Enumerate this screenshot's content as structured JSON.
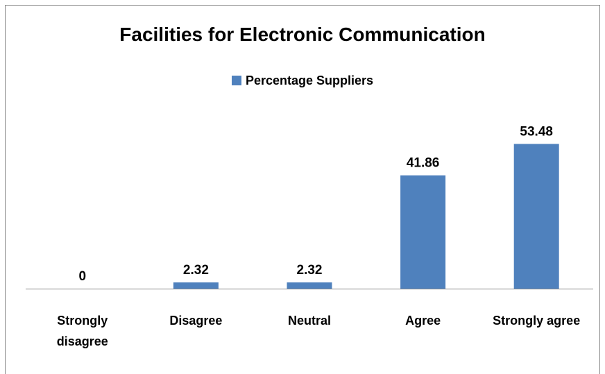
{
  "chart_data": {
    "type": "bar",
    "title": "Facilities for Electronic Communication",
    "categories": [
      "Strongly disagree",
      "Disagree",
      "Neutral",
      "Agree",
      "Strongly agree"
    ],
    "category_lines": [
      [
        "Strongly",
        "disagree"
      ],
      [
        "Disagree"
      ],
      [
        "Neutral"
      ],
      [
        "Agree"
      ],
      [
        "Strongly agree"
      ]
    ],
    "series": [
      {
        "name": "Percentage Suppliers",
        "values": [
          0,
          2.32,
          2.32,
          41.86,
          53.48
        ],
        "value_labels": [
          "0",
          "2.32",
          "2.32",
          "41.86",
          "53.48"
        ],
        "color": "#4f81bd"
      }
    ],
    "xlabel": "",
    "ylabel": "",
    "ylim": [
      0,
      60
    ],
    "grid": false,
    "legend_position": "top"
  }
}
